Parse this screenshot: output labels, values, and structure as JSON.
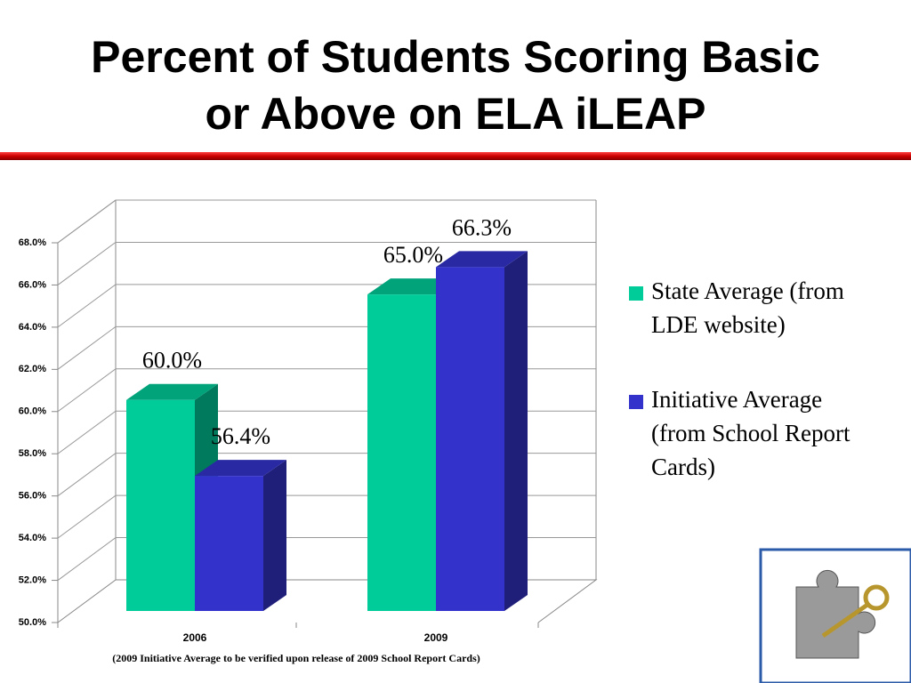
{
  "chart_data": {
    "type": "bar3d",
    "title": "Percent of Students Scoring Basic or Above on ELA iLEAP",
    "categories": [
      "2006",
      "2009"
    ],
    "series": [
      {
        "name": "State Average (from LDE website)",
        "color": "#00cc99",
        "values": [
          60.0,
          65.0
        ],
        "value_labels": [
          "60.0%",
          "65.0%"
        ]
      },
      {
        "name": "Initiative Average (from School Report Cards)",
        "color": "#3333cc",
        "values": [
          56.4,
          66.3
        ],
        "value_labels": [
          "56.4%",
          "66.3%"
        ]
      }
    ],
    "ylim": [
      50,
      68
    ],
    "yticks": [
      {
        "value": 50,
        "label": "50.0%"
      },
      {
        "value": 52,
        "label": "52.0%"
      },
      {
        "value": 54,
        "label": "54.0%"
      },
      {
        "value": 56,
        "label": "56.0%"
      },
      {
        "value": 58,
        "label": "58.0%"
      },
      {
        "value": 60,
        "label": "60.0%"
      },
      {
        "value": 62,
        "label": "62.0%"
      },
      {
        "value": 64,
        "label": "64.0%"
      },
      {
        "value": 66,
        "label": "66.0%"
      },
      {
        "value": 68,
        "label": "68.0%"
      }
    ],
    "grid": true,
    "legend": "right",
    "footnote": "(2009 Initiative Average to be verified upon release of 2009 School Report Cards)"
  }
}
